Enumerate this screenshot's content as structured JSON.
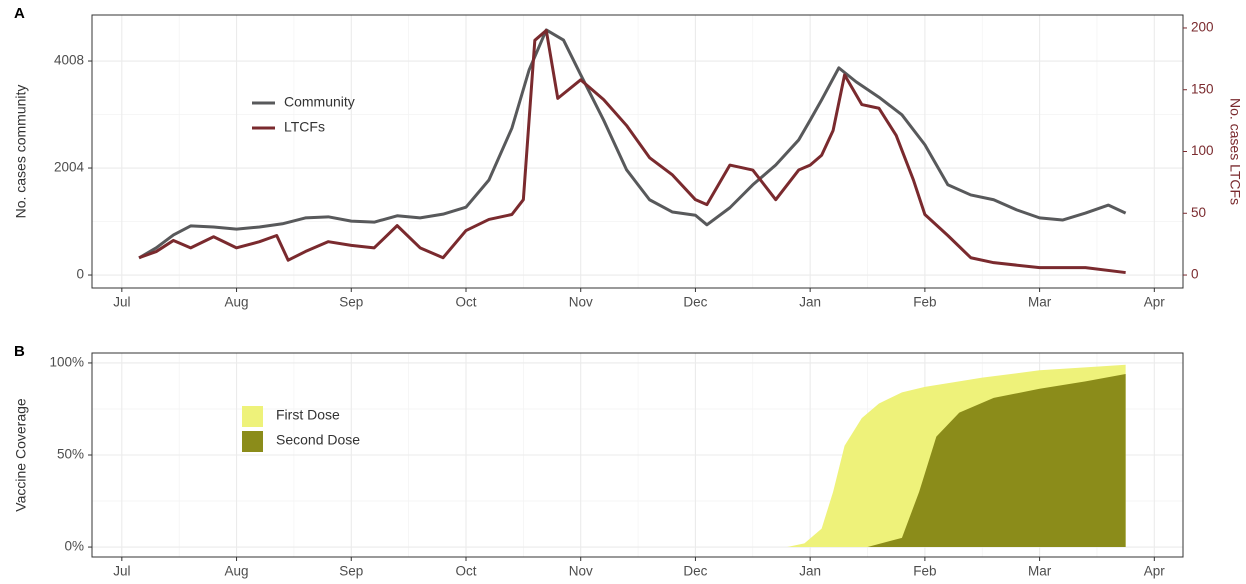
{
  "chart_data": [
    {
      "type": "line",
      "label": "A",
      "ylabel": "No. cases community",
      "y2label": "No. cases LTCFs",
      "xlim": [
        -0.26,
        9.25
      ],
      "xticks": [
        {
          "value": 0,
          "label": "Jul"
        },
        {
          "value": 1,
          "label": "Aug"
        },
        {
          "value": 2,
          "label": "Sep"
        },
        {
          "value": 3,
          "label": "Oct"
        },
        {
          "value": 4,
          "label": "Nov"
        },
        {
          "value": 5,
          "label": "Dec"
        },
        {
          "value": 6,
          "label": "Jan"
        },
        {
          "value": 7,
          "label": "Feb"
        },
        {
          "value": 8,
          "label": "Mar"
        },
        {
          "value": 9,
          "label": "Apr"
        }
      ],
      "ylim": [
        -243,
        4870
      ],
      "yticks": [
        0,
        2004,
        4008
      ],
      "y2lim": [
        -10.5,
        210.5
      ],
      "y2ticks": [
        0,
        50,
        100,
        150,
        200
      ],
      "y2color": "#7a2a2e",
      "grid": true,
      "series": [
        {
          "name": "Community",
          "color": "#58595b",
          "x": [
            0.15,
            0.3,
            0.45,
            0.6,
            0.8,
            1.0,
            1.2,
            1.4,
            1.6,
            1.8,
            2.0,
            2.2,
            2.4,
            2.6,
            2.8,
            3.0,
            3.2,
            3.4,
            3.55,
            3.7,
            3.85,
            4.0,
            4.2,
            4.4,
            4.6,
            4.8,
            5.0,
            5.1,
            5.3,
            5.5,
            5.7,
            5.9,
            6.0,
            6.1,
            6.25,
            6.4,
            6.6,
            6.8,
            7.0,
            7.2,
            7.4,
            7.6,
            7.8,
            8.0,
            8.2,
            8.4,
            8.6,
            8.75
          ],
          "values": [
            320,
            510,
            750,
            920,
            900,
            860,
            900,
            960,
            1070,
            1090,
            1010,
            990,
            1110,
            1070,
            1140,
            1270,
            1780,
            2750,
            3840,
            4590,
            4400,
            3750,
            2900,
            1970,
            1410,
            1180,
            1120,
            940,
            1260,
            1690,
            2060,
            2530,
            2900,
            3280,
            3880,
            3620,
            3330,
            3000,
            2440,
            1690,
            1500,
            1410,
            1220,
            1070,
            1030,
            1160,
            1310,
            1160
          ]
        },
        {
          "name": "LTCFs",
          "color": "#7a2a2e",
          "axis": "y2",
          "x": [
            0.15,
            0.3,
            0.45,
            0.6,
            0.8,
            1.0,
            1.2,
            1.35,
            1.45,
            1.6,
            1.8,
            2.0,
            2.2,
            2.4,
            2.6,
            2.8,
            3.0,
            3.2,
            3.4,
            3.5,
            3.6,
            3.7,
            3.8,
            4.0,
            4.2,
            4.4,
            4.6,
            4.8,
            5.0,
            5.1,
            5.3,
            5.5,
            5.7,
            5.9,
            6.0,
            6.1,
            6.2,
            6.3,
            6.45,
            6.6,
            6.75,
            6.9,
            7.0,
            7.2,
            7.4,
            7.6,
            8.0,
            8.4,
            8.75
          ],
          "values": [
            14,
            19,
            28,
            22,
            31,
            22,
            27,
            32,
            12,
            19,
            27,
            24,
            22,
            40,
            22,
            14,
            36,
            45,
            49,
            61,
            190,
            198,
            143,
            158,
            142,
            121,
            95,
            81,
            61,
            57,
            89,
            85,
            61,
            85,
            89,
            97,
            117,
            162,
            138,
            135,
            113,
            77,
            49,
            32,
            14,
            10,
            6,
            6,
            2
          ]
        }
      ]
    },
    {
      "type": "area",
      "label": "B",
      "ylabel": "Vaccine Coverage",
      "xlim": [
        -0.26,
        9.25
      ],
      "xticks": [
        {
          "value": 0,
          "label": "Jul"
        },
        {
          "value": 1,
          "label": "Aug"
        },
        {
          "value": 2,
          "label": "Sep"
        },
        {
          "value": 3,
          "label": "Oct"
        },
        {
          "value": 4,
          "label": "Nov"
        },
        {
          "value": 5,
          "label": "Dec"
        },
        {
          "value": 6,
          "label": "Jan"
        },
        {
          "value": 7,
          "label": "Feb"
        },
        {
          "value": 8,
          "label": "Mar"
        },
        {
          "value": 9,
          "label": "Apr"
        }
      ],
      "ylim": [
        -5.4,
        105.4
      ],
      "yticks": [
        {
          "value": 0,
          "label": "0%"
        },
        {
          "value": 50,
          "label": "50%"
        },
        {
          "value": 100,
          "label": "100%"
        }
      ],
      "grid": true,
      "series": [
        {
          "name": "First Dose",
          "color": "#eef27a",
          "x": [
            5.8,
            5.95,
            6.1,
            6.2,
            6.3,
            6.45,
            6.6,
            6.8,
            7.0,
            7.5,
            8.0,
            8.5,
            8.75
          ],
          "values": [
            0,
            2,
            10,
            30,
            55,
            70,
            78,
            84,
            87,
            92,
            96,
            98,
            99
          ]
        },
        {
          "name": "Second Dose",
          "color": "#8b8c1a",
          "x": [
            6.5,
            6.8,
            6.95,
            7.1,
            7.3,
            7.6,
            8.0,
            8.4,
            8.75
          ],
          "values": [
            0,
            5,
            30,
            60,
            73,
            81,
            86,
            90,
            94
          ]
        }
      ]
    }
  ]
}
